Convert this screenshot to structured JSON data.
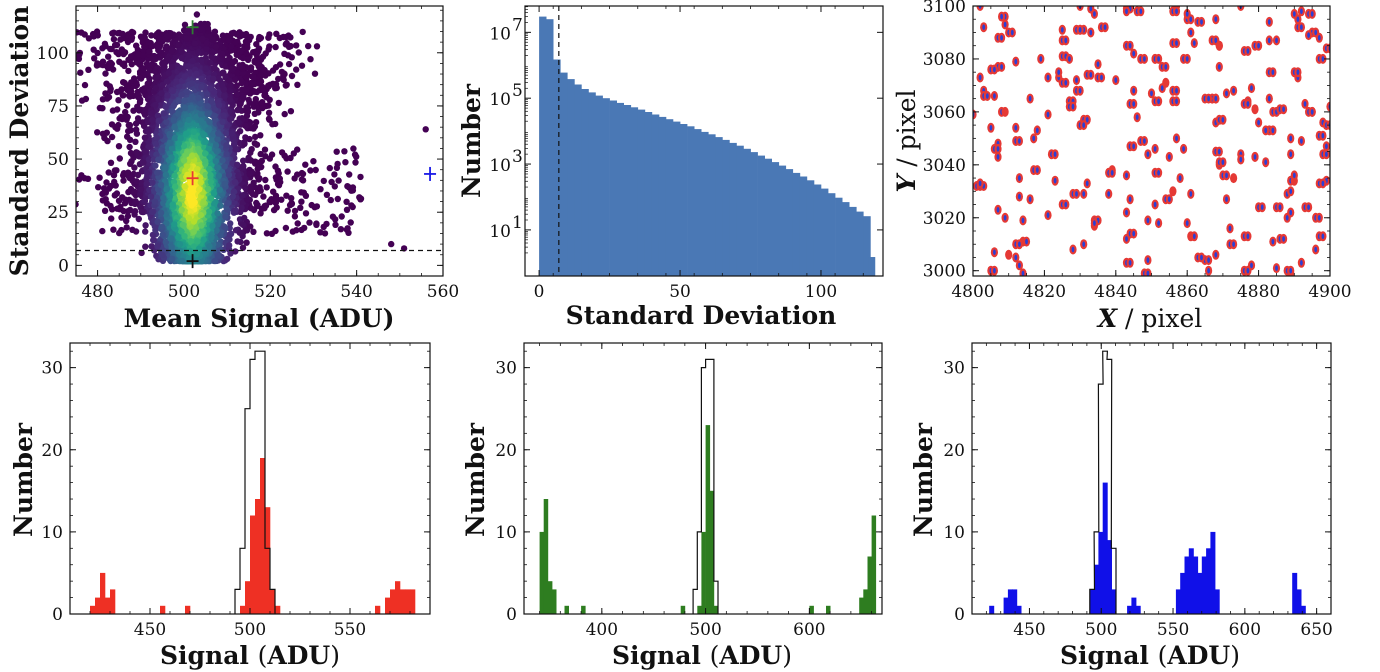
{
  "chart_data": [
    {
      "panel": "top-left",
      "type": "scatter",
      "xlabel": "Mean Signal (ADU)",
      "ylabel": "Standard Deviation",
      "xlim": [
        475,
        560
      ],
      "ylim": [
        -5,
        122
      ],
      "xticks": [
        "480",
        "500",
        "520",
        "540",
        "560"
      ],
      "yticks": [
        "0",
        "25",
        "50",
        "75",
        "100"
      ],
      "threshold_y": 7,
      "markers": [
        {
          "x": 502,
          "y": 112,
          "color": "#2e7d32"
        },
        {
          "x": 502,
          "y": 41,
          "color": "#e53935"
        },
        {
          "x": 502,
          "y": 2,
          "color": "#111111"
        },
        {
          "x": 557,
          "y": 43,
          "color": "#1a1ae6"
        }
      ],
      "colormap": "viridis"
    },
    {
      "panel": "top-middle",
      "type": "bar",
      "xlabel": "Standard Deviation",
      "ylabel": "Number",
      "yscale": "log",
      "xlim": [
        -5,
        122
      ],
      "ylim_log10": [
        -0.4,
        7.8
      ],
      "xticks": [
        "0",
        "50",
        "100"
      ],
      "yticks": [
        {
          "base": "10",
          "exp": "1"
        },
        {
          "base": "10",
          "exp": "3"
        },
        {
          "base": "10",
          "exp": "5"
        },
        {
          "base": "10",
          "exp": "7"
        }
      ],
      "threshold_x": 7,
      "bin_width": 2.5,
      "bin_start": 0,
      "values": [
        30000000,
        25000000,
        1500000,
        600000,
        380000,
        260000,
        190000,
        150000,
        120000,
        100000,
        85000,
        72000,
        62000,
        53000,
        45000,
        38000,
        32000,
        27000,
        23000,
        19500,
        16500,
        14000,
        11500,
        9500,
        8000,
        6600,
        5400,
        4400,
        3600,
        2900,
        2300,
        1800,
        1450,
        1150,
        900,
        700,
        540,
        420,
        320,
        240,
        180,
        130,
        95,
        70,
        50,
        36,
        26,
        0,
        0
      ],
      "extra_bars": [
        {
          "x": 118,
          "value": 1.5
        }
      ],
      "color": "#4a78b5"
    },
    {
      "panel": "top-right",
      "type": "scatter",
      "xlabel": "X / pixel",
      "ylabel": "Y / pixel",
      "xlim": [
        4800,
        4900
      ],
      "ylim": [
        2998,
        3100
      ],
      "xticks": [
        "4800",
        "4820",
        "4840",
        "4860",
        "4880",
        "4900"
      ],
      "yticks": [
        "3000",
        "3020",
        "3040",
        "3060",
        "3080",
        "3100"
      ],
      "outer_color": "#e53935",
      "inner_color": "#2a3fd6"
    },
    {
      "panel": "bottom-left",
      "type": "bar",
      "xlabel": "Signal (ADU)",
      "ylabel": "Number",
      "xlim": [
        410,
        590
      ],
      "ylim": [
        0,
        33
      ],
      "xticks": [
        "450",
        "500",
        "550"
      ],
      "yticks": [
        "0",
        "10",
        "20",
        "30"
      ],
      "color": "#ee3024",
      "bin_width": 2.5,
      "bars": [
        [
          420,
          1
        ],
        [
          422.5,
          2
        ],
        [
          425,
          5
        ],
        [
          427.5,
          2
        ],
        [
          430,
          3
        ],
        [
          455,
          1
        ],
        [
          467.5,
          1
        ],
        [
          495,
          1
        ],
        [
          497.5,
          4
        ],
        [
          500,
          12
        ],
        [
          502.5,
          14
        ],
        [
          505,
          19
        ],
        [
          507.5,
          13
        ],
        [
          510,
          3
        ],
        [
          512.5,
          1
        ],
        [
          562.5,
          1
        ],
        [
          567.5,
          2
        ],
        [
          570,
          3
        ],
        [
          572.5,
          4
        ],
        [
          575,
          3
        ],
        [
          577.5,
          3
        ],
        [
          580,
          3
        ]
      ],
      "outline_bars": [
        [
          492.5,
          3
        ],
        [
          495,
          8
        ],
        [
          497.5,
          25
        ],
        [
          500,
          31
        ],
        [
          502.5,
          32
        ],
        [
          505,
          32
        ],
        [
          507.5,
          8
        ],
        [
          510,
          3
        ]
      ]
    },
    {
      "panel": "bottom-middle",
      "type": "bar",
      "xlabel": "Signal (ADU)",
      "ylabel": "Number",
      "xlim": [
        325,
        670
      ],
      "ylim": [
        0,
        33
      ],
      "xticks": [
        "400",
        "500",
        "600"
      ],
      "yticks": [
        "0",
        "10",
        "20",
        "30"
      ],
      "color": "#2e7d20",
      "bin_width": 4,
      "bars": [
        [
          340,
          10
        ],
        [
          344,
          14
        ],
        [
          348,
          4
        ],
        [
          352,
          3
        ],
        [
          364,
          1
        ],
        [
          380,
          1
        ],
        [
          476,
          1
        ],
        [
          492,
          1
        ],
        [
          496,
          10
        ],
        [
          500,
          23
        ],
        [
          504,
          15
        ],
        [
          508,
          1
        ],
        [
          600,
          1
        ],
        [
          616,
          1
        ],
        [
          648,
          2
        ],
        [
          652,
          3
        ],
        [
          656,
          7
        ],
        [
          660,
          12
        ]
      ],
      "outline_bars": [
        [
          488,
          3
        ],
        [
          492,
          10
        ],
        [
          496,
          30
        ],
        [
          500,
          31
        ],
        [
          504,
          31
        ],
        [
          508,
          4
        ]
      ]
    },
    {
      "panel": "bottom-right",
      "type": "bar",
      "xlabel": "Signal (ADU)",
      "ylabel": "Number",
      "xlim": [
        410,
        660
      ],
      "ylim": [
        0,
        33
      ],
      "xticks": [
        "450",
        "500",
        "550",
        "600",
        "650"
      ],
      "yticks": [
        "0",
        "10",
        "20",
        "30"
      ],
      "color": "#1010e8",
      "bin_width": 3.3,
      "bars": [
        [
          422,
          1
        ],
        [
          432,
          2
        ],
        [
          435,
          3
        ],
        [
          438,
          3
        ],
        [
          441,
          1
        ],
        [
          492,
          3
        ],
        [
          495,
          6
        ],
        [
          498,
          10
        ],
        [
          501,
          16
        ],
        [
          504,
          9
        ],
        [
          507,
          3
        ],
        [
          518,
          1
        ],
        [
          521,
          2
        ],
        [
          524,
          1
        ],
        [
          552,
          3
        ],
        [
          555,
          5
        ],
        [
          558,
          7
        ],
        [
          561,
          8
        ],
        [
          564,
          7
        ],
        [
          567,
          5
        ],
        [
          570,
          7
        ],
        [
          573,
          8
        ],
        [
          576,
          10
        ],
        [
          579,
          3
        ],
        [
          633,
          5
        ],
        [
          636,
          3
        ],
        [
          639,
          1
        ]
      ],
      "outline_bars": [
        [
          492,
          3
        ],
        [
          495,
          10
        ],
        [
          498,
          28
        ],
        [
          501,
          32
        ],
        [
          504,
          31
        ],
        [
          507,
          8
        ]
      ]
    }
  ]
}
